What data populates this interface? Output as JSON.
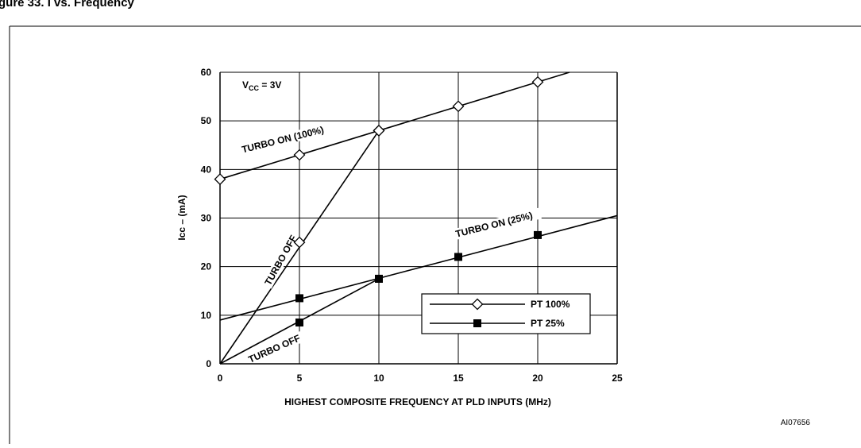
{
  "header": {
    "title_visible": "gure 33.   I    vs. Frequency"
  },
  "figure_id": "AI07656",
  "chart_data": {
    "type": "line",
    "xlabel": "HIGHEST COMPOSITE FREQUENCY AT PLD INPUTS (MHz)",
    "ylabel": "Icc – (mA)",
    "xlim": [
      0,
      25
    ],
    "ylim": [
      0,
      60
    ],
    "xticks": [
      0,
      5,
      10,
      15,
      20,
      25
    ],
    "yticks": [
      0,
      10,
      20,
      30,
      40,
      50,
      60
    ],
    "grid": "horizontal",
    "condition": {
      "prefix": "V",
      "sub": "CC",
      "suffix": " = 3V"
    },
    "legend": {
      "placement": "bottom-right",
      "entries": [
        {
          "label": "PT 100%",
          "marker": "diamond-open"
        },
        {
          "label": "PT 25%",
          "marker": "square-filled"
        }
      ]
    },
    "series": [
      {
        "name": "PT 100%",
        "label": "TURBO  ON (100%)",
        "marker": "diamond-open",
        "line": [
          [
            0,
            38
          ],
          [
            22,
            60
          ]
        ],
        "points": [
          [
            0,
            38
          ],
          [
            5,
            43
          ],
          [
            10,
            48
          ],
          [
            15,
            53
          ],
          [
            20,
            58
          ]
        ]
      },
      {
        "name": "PT 100%",
        "label": "TURBO OFF",
        "marker": "diamond-open",
        "line": [
          [
            0,
            0
          ],
          [
            10,
            48
          ]
        ],
        "points": [
          [
            5,
            25
          ],
          [
            10,
            48
          ]
        ]
      },
      {
        "name": "PT 25%",
        "label": "TURBO  ON (25%)",
        "marker": "square-filled",
        "line": [
          [
            0,
            9
          ],
          [
            25,
            30.5
          ]
        ],
        "points": [
          [
            5,
            13.5
          ],
          [
            10,
            17.5
          ],
          [
            15,
            22
          ],
          [
            20,
            26.5
          ]
        ]
      },
      {
        "name": "PT 25%",
        "label": "TURBO  OFF",
        "marker": "square-filled",
        "line": [
          [
            0,
            0
          ],
          [
            10,
            17.5
          ]
        ],
        "points": [
          [
            5,
            8.5
          ],
          [
            10,
            17.5
          ]
        ]
      }
    ]
  }
}
